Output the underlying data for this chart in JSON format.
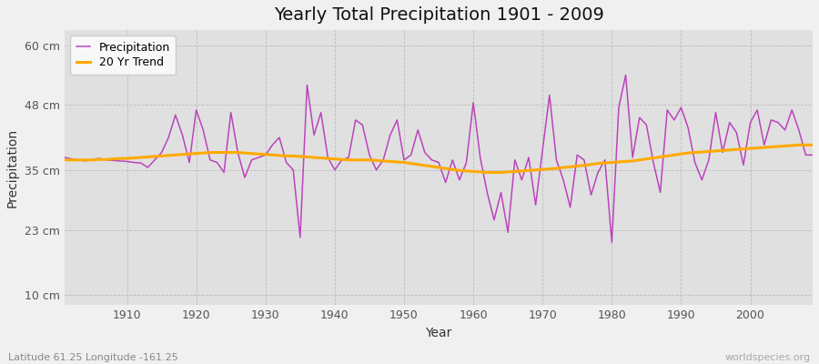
{
  "title": "Yearly Total Precipitation 1901 - 2009",
  "xlabel": "Year",
  "ylabel": "Precipitation",
  "subtitle": "Latitude 61.25 Longitude -161.25",
  "watermark": "worldspecies.org",
  "fig_facecolor": "#f0f0f0",
  "plot_facecolor": "#e0e0e0",
  "precip_color": "#bb44bb",
  "trend_color": "#ffaa00",
  "ytick_labels": [
    "10 cm",
    "23 cm",
    "35 cm",
    "48 cm",
    "60 cm"
  ],
  "ytick_values": [
    10,
    23,
    35,
    48,
    60
  ],
  "ylim": [
    8,
    63
  ],
  "xlim": [
    1901,
    2009
  ],
  "xticks": [
    1910,
    1920,
    1930,
    1940,
    1950,
    1960,
    1970,
    1980,
    1990,
    2000
  ],
  "years": [
    1901,
    1902,
    1903,
    1904,
    1905,
    1906,
    1907,
    1908,
    1909,
    1910,
    1911,
    1912,
    1913,
    1914,
    1915,
    1916,
    1917,
    1918,
    1919,
    1920,
    1921,
    1922,
    1923,
    1924,
    1925,
    1926,
    1927,
    1928,
    1929,
    1930,
    1931,
    1932,
    1933,
    1934,
    1935,
    1936,
    1937,
    1938,
    1939,
    1940,
    1941,
    1942,
    1943,
    1944,
    1945,
    1946,
    1947,
    1948,
    1949,
    1950,
    1951,
    1952,
    1953,
    1954,
    1955,
    1956,
    1957,
    1958,
    1959,
    1960,
    1961,
    1962,
    1963,
    1964,
    1965,
    1966,
    1967,
    1968,
    1969,
    1970,
    1971,
    1972,
    1973,
    1974,
    1975,
    1976,
    1977,
    1978,
    1979,
    1980,
    1981,
    1982,
    1983,
    1984,
    1985,
    1986,
    1987,
    1988,
    1989,
    1990,
    1991,
    1992,
    1993,
    1994,
    1995,
    1996,
    1997,
    1998,
    1999,
    2000,
    2001,
    2002,
    2003,
    2004,
    2005,
    2006,
    2007,
    2008,
    2009
  ],
  "precip": [
    37.5,
    37.2,
    37.0,
    36.8,
    37.1,
    37.3,
    37.0,
    36.9,
    36.8,
    36.7,
    36.5,
    36.4,
    35.5,
    37.0,
    38.5,
    41.5,
    46.0,
    42.0,
    36.5,
    47.0,
    43.0,
    37.0,
    36.5,
    34.5,
    46.5,
    38.5,
    33.5,
    37.0,
    37.5,
    38.0,
    40.0,
    41.5,
    36.5,
    35.0,
    21.5,
    52.0,
    42.0,
    46.5,
    37.5,
    35.0,
    37.0,
    37.5,
    45.0,
    44.0,
    38.0,
    35.0,
    37.0,
    42.0,
    45.0,
    37.0,
    38.0,
    43.0,
    38.5,
    37.0,
    36.5,
    32.5,
    37.0,
    33.0,
    36.5,
    48.5,
    37.5,
    30.5,
    25.0,
    30.5,
    22.5,
    37.0,
    33.0,
    37.5,
    28.0,
    39.0,
    50.0,
    37.0,
    33.0,
    27.5,
    38.0,
    37.0,
    30.0,
    34.5,
    37.0,
    20.5,
    47.5,
    54.0,
    37.5,
    45.5,
    44.0,
    36.5,
    30.5,
    47.0,
    45.0,
    47.5,
    43.5,
    36.5,
    33.0,
    37.0,
    46.5,
    38.5,
    44.5,
    42.5,
    36.0,
    44.5,
    47.0,
    40.0,
    45.0,
    44.5,
    43.0,
    47.0,
    43.0,
    38.0,
    38.0
  ],
  "trend": [
    37.0,
    37.0,
    37.0,
    37.0,
    37.0,
    37.1,
    37.1,
    37.2,
    37.3,
    37.3,
    37.4,
    37.5,
    37.6,
    37.7,
    37.8,
    37.9,
    38.0,
    38.1,
    38.2,
    38.3,
    38.4,
    38.5,
    38.5,
    38.5,
    38.5,
    38.5,
    38.4,
    38.3,
    38.2,
    38.1,
    38.0,
    37.9,
    37.8,
    37.8,
    37.7,
    37.6,
    37.5,
    37.4,
    37.3,
    37.2,
    37.1,
    37.0,
    37.0,
    37.0,
    37.0,
    36.9,
    36.8,
    36.7,
    36.6,
    36.5,
    36.3,
    36.1,
    35.9,
    35.7,
    35.5,
    35.3,
    35.1,
    34.9,
    34.8,
    34.7,
    34.6,
    34.5,
    34.5,
    34.5,
    34.6,
    34.7,
    34.8,
    34.9,
    35.0,
    35.1,
    35.2,
    35.3,
    35.5,
    35.6,
    35.8,
    35.9,
    36.1,
    36.3,
    36.4,
    36.5,
    36.6,
    36.7,
    36.8,
    37.0,
    37.2,
    37.4,
    37.6,
    37.8,
    38.0,
    38.2,
    38.4,
    38.5,
    38.6,
    38.7,
    38.8,
    38.9,
    39.0,
    39.1,
    39.2,
    39.3,
    39.4,
    39.5,
    39.6,
    39.7,
    39.8,
    39.9,
    40.0,
    40.0,
    40.0
  ]
}
